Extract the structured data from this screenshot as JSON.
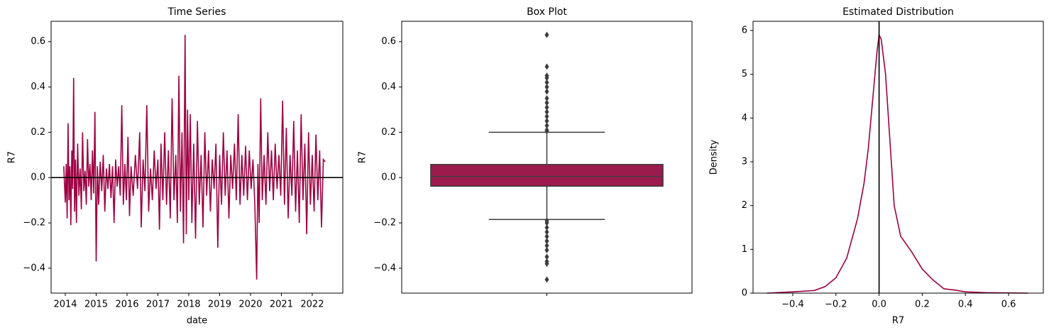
{
  "chart_data": [
    {
      "type": "line",
      "title": "Time Series",
      "xlabel": "date",
      "ylabel": "R7",
      "color": "#9e0142",
      "x": [
        2013.95,
        2014.0,
        2014.03,
        2014.06,
        2014.09,
        2014.12,
        2014.15,
        2014.18,
        2014.21,
        2014.24,
        2014.27,
        2014.3,
        2014.33,
        2014.36,
        2014.4,
        2014.44,
        2014.48,
        2014.52,
        2014.56,
        2014.6,
        2014.64,
        2014.68,
        2014.72,
        2014.76,
        2014.8,
        2014.84,
        2014.88,
        2014.92,
        2014.96,
        2015.0,
        2015.04,
        2015.08,
        2015.13,
        2015.18,
        2015.23,
        2015.28,
        2015.33,
        2015.38,
        2015.43,
        2015.48,
        2015.53,
        2015.58,
        2015.63,
        2015.68,
        2015.73,
        2015.78,
        2015.83,
        2015.88,
        2015.93,
        2015.98,
        2016.03,
        2016.08,
        2016.13,
        2016.2,
        2016.27,
        2016.34,
        2016.41,
        2016.46,
        2016.52,
        2016.58,
        2016.64,
        2016.7,
        2016.76,
        2016.82,
        2016.88,
        2016.94,
        2017.0,
        2017.05,
        2017.1,
        2017.16,
        2017.22,
        2017.28,
        2017.34,
        2017.4,
        2017.46,
        2017.52,
        2017.58,
        2017.63,
        2017.68,
        2017.73,
        2017.78,
        2017.83,
        2017.88,
        2017.92,
        2017.96,
        2018.0,
        2018.05,
        2018.1,
        2018.16,
        2018.22,
        2018.28,
        2018.34,
        2018.4,
        2018.46,
        2018.52,
        2018.58,
        2018.64,
        2018.7,
        2018.76,
        2018.82,
        2018.88,
        2018.94,
        2019.0,
        2019.06,
        2019.12,
        2019.18,
        2019.24,
        2019.3,
        2019.36,
        2019.42,
        2019.48,
        2019.54,
        2019.6,
        2019.66,
        2019.72,
        2019.78,
        2019.84,
        2019.9,
        2019.96,
        2020.02,
        2020.08,
        2020.14,
        2020.2,
        2020.24,
        2020.28,
        2020.33,
        2020.38,
        2020.44,
        2020.5,
        2020.56,
        2020.62,
        2020.68,
        2020.74,
        2020.8,
        2020.86,
        2020.92,
        2020.98,
        2021.04,
        2021.1,
        2021.16,
        2021.22,
        2021.28,
        2021.34,
        2021.4,
        2021.46,
        2021.52,
        2021.58,
        2021.64,
        2021.7,
        2021.76,
        2021.82,
        2021.88,
        2021.94,
        2022.0,
        2022.06,
        2022.12,
        2022.18,
        2022.24,
        2022.3,
        2022.36,
        2022.42
      ],
      "values": [
        0.05,
        -0.11,
        0.06,
        -0.18,
        0.24,
        -0.1,
        0.05,
        -0.21,
        0.12,
        -0.05,
        0.44,
        -0.15,
        0.08,
        -0.2,
        0.15,
        -0.08,
        0.04,
        -0.14,
        0.2,
        -0.06,
        0.03,
        -0.12,
        0.17,
        -0.04,
        0.06,
        -0.1,
        0.12,
        -0.07,
        0.29,
        -0.37,
        0.05,
        -0.12,
        0.07,
        -0.06,
        0.1,
        -0.15,
        0.04,
        -0.05,
        0.06,
        -0.09,
        0.05,
        -0.2,
        0.08,
        -0.04,
        0.05,
        -0.08,
        0.32,
        -0.12,
        0.06,
        -0.1,
        0.18,
        -0.17,
        0.05,
        -0.08,
        0.1,
        -0.05,
        0.2,
        -0.22,
        0.08,
        -0.06,
        0.32,
        -0.15,
        0.04,
        -0.1,
        0.12,
        -0.05,
        0.08,
        -0.23,
        0.15,
        -0.1,
        0.2,
        -0.12,
        0.12,
        -0.18,
        0.35,
        -0.1,
        0.1,
        -0.2,
        0.45,
        -0.15,
        0.2,
        -0.29,
        0.63,
        -0.25,
        0.3,
        -0.1,
        0.28,
        -0.2,
        0.15,
        -0.27,
        0.25,
        -0.12,
        0.1,
        -0.22,
        0.2,
        -0.08,
        0.12,
        -0.15,
        0.08,
        -0.05,
        0.15,
        -0.31,
        0.1,
        -0.12,
        0.2,
        -0.08,
        0.12,
        -0.18,
        0.1,
        -0.05,
        0.15,
        -0.1,
        0.28,
        -0.12,
        0.1,
        -0.08,
        0.14,
        -0.1,
        0.12,
        -0.05,
        0.08,
        -0.12,
        -0.45,
        0.06,
        -0.2,
        0.35,
        -0.1,
        0.1,
        -0.12,
        0.2,
        -0.06,
        0.12,
        -0.1,
        0.15,
        -0.05,
        0.1,
        -0.08,
        0.34,
        -0.12,
        0.22,
        -0.18,
        0.1,
        -0.08,
        0.25,
        -0.15,
        0.12,
        -0.2,
        0.28,
        -0.1,
        0.15,
        -0.25,
        0.2,
        -0.12,
        0.1,
        -0.15,
        0.19,
        -0.1,
        0.12,
        -0.22,
        0.08,
        0.07
      ],
      "hline": 0,
      "xlim": [
        2013.54,
        2022.99
      ],
      "xticks": [
        2014,
        2015,
        2016,
        2017,
        2018,
        2019,
        2020,
        2021,
        2022
      ],
      "ylim": [
        -0.51,
        0.69
      ],
      "yticks": [
        {
          "value": -0.4,
          "label": "−0.4"
        },
        {
          "value": -0.2,
          "label": "−0.2"
        },
        {
          "value": 0,
          "label": "0.0"
        },
        0.2,
        0.4,
        0.6
      ]
    },
    {
      "type": "box",
      "title": "Box Plot",
      "ylabel": "R7",
      "color": "#9b1b4c",
      "whislo": -0.185,
      "q1": -0.038,
      "med": 0.005,
      "q3": 0.058,
      "whishi": 0.2,
      "fliers": [
        0.63,
        0.49,
        0.45,
        0.44,
        0.42,
        0.4,
        0.38,
        0.35,
        0.33,
        0.31,
        0.29,
        0.27,
        0.25,
        0.23,
        0.21,
        0.205,
        -0.19,
        -0.2,
        -0.22,
        -0.24,
        -0.26,
        -0.28,
        -0.3,
        -0.32,
        -0.35,
        -0.37,
        -0.38,
        -0.45
      ],
      "ylim": [
        -0.51,
        0.69
      ],
      "yticks": [
        {
          "value": -0.4,
          "label": "−0.4"
        },
        {
          "value": -0.2,
          "label": "−0.2"
        },
        {
          "value": 0,
          "label": "0.0"
        },
        0.2,
        0.4,
        0.6
      ]
    },
    {
      "type": "line",
      "title": "Estimated Distribution",
      "xlabel": "R7",
      "ylabel": "Density",
      "color": "#9e0142",
      "x": [
        -0.52,
        -0.4,
        -0.3,
        -0.25,
        -0.2,
        -0.15,
        -0.1,
        -0.07,
        -0.05,
        -0.03,
        -0.01,
        0.0,
        0.01,
        0.03,
        0.05,
        0.07,
        0.1,
        0.15,
        0.2,
        0.25,
        0.3,
        0.35,
        0.4,
        0.5,
        0.6,
        0.69
      ],
      "values": [
        0.0,
        0.03,
        0.06,
        0.15,
        0.35,
        0.8,
        1.7,
        2.5,
        3.3,
        4.4,
        5.5,
        5.9,
        5.8,
        5.0,
        3.5,
        2.0,
        1.3,
        0.95,
        0.55,
        0.3,
        0.1,
        0.07,
        0.03,
        0.01,
        0.005,
        0.0
      ],
      "vline": 0,
      "xlim": [
        -0.584,
        0.761
      ],
      "xticks": [
        {
          "value": -0.4,
          "label": "−0.4"
        },
        {
          "value": -0.2,
          "label": "−0.2"
        },
        {
          "value": 0,
          "label": "0.0"
        },
        0.2,
        0.4,
        0.6
      ],
      "ylim": [
        0,
        6.21
      ],
      "yticks": [
        0,
        1,
        2,
        3,
        4,
        5,
        6
      ]
    }
  ]
}
